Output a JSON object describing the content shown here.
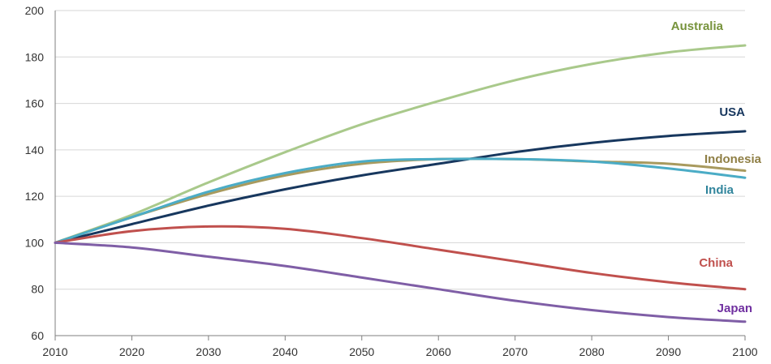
{
  "chart_data": {
    "type": "line",
    "title": "",
    "xlabel": "",
    "ylabel": "",
    "xlim": [
      2010,
      2100
    ],
    "ylim": [
      60,
      200
    ],
    "grid": true,
    "legend": "direct labels at line ends",
    "x": [
      2010,
      2020,
      2030,
      2040,
      2050,
      2060,
      2070,
      2080,
      2090,
      2100
    ],
    "x_ticks": [
      "2010",
      "2020",
      "2030",
      "2040",
      "2050",
      "2060",
      "2070",
      "2080",
      "2090",
      "2100"
    ],
    "y_ticks": [
      "60",
      "80",
      "100",
      "120",
      "140",
      "160",
      "180",
      "200"
    ],
    "series": [
      {
        "name": "Australia",
        "color": "#a9c98b",
        "label_color": "#77933c",
        "values": [
          100,
          112,
          126,
          139,
          151,
          161,
          170,
          177,
          182,
          185
        ]
      },
      {
        "name": "USA",
        "color": "#17375e",
        "label_color": "#17375e",
        "values": [
          100,
          108,
          116,
          123,
          129,
          134,
          139,
          143,
          146,
          148
        ]
      },
      {
        "name": "Indonesia",
        "color": "#a89a5e",
        "label_color": "#8f7f45",
        "values": [
          100,
          111,
          121,
          129,
          134,
          136,
          136,
          135,
          134,
          131
        ]
      },
      {
        "name": "India",
        "color": "#4bacc6",
        "label_color": "#31859c",
        "values": [
          100,
          111,
          122,
          130,
          135,
          136,
          136,
          135,
          132,
          128
        ]
      },
      {
        "name": "China",
        "color": "#c0504d",
        "label_color": "#c0504d",
        "values": [
          100,
          105,
          107,
          106,
          102,
          97,
          92,
          87,
          83,
          80
        ]
      },
      {
        "name": "Japan",
        "color": "#7f5ea6",
        "label_color": "#7030a0",
        "values": [
          100,
          98,
          94,
          90,
          85,
          80,
          75,
          71,
          68,
          66
        ]
      }
    ]
  }
}
